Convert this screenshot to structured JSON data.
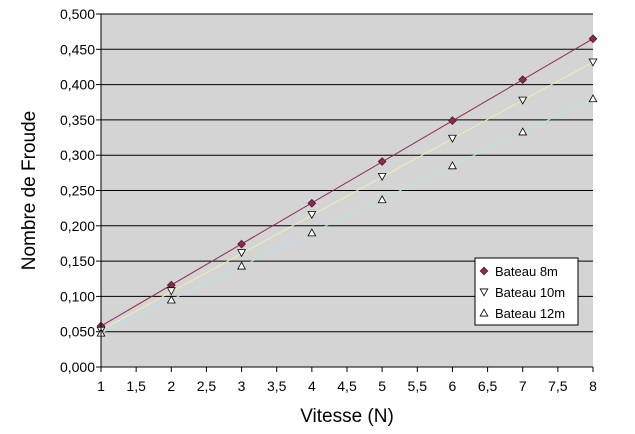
{
  "chart_data": {
    "type": "scatter",
    "title": "",
    "xlabel": "Vitesse (N)",
    "ylabel": "Nombre de Froude",
    "xlim": [
      1,
      8
    ],
    "ylim": [
      0,
      0.5
    ],
    "x_ticks": [
      1,
      1.5,
      2,
      2.5,
      3,
      3.5,
      4,
      4.5,
      5,
      5.5,
      6,
      6.5,
      7,
      7.5,
      8
    ],
    "x_tick_labels": [
      "1",
      "1,5",
      "2",
      "2,5",
      "3",
      "3,5",
      "4",
      "4,5",
      "5",
      "5,5",
      "6",
      "6,5",
      "7",
      "7,5",
      "8"
    ],
    "y_ticks": [
      0,
      0.05,
      0.1,
      0.15,
      0.2,
      0.25,
      0.3,
      0.35,
      0.4,
      0.45,
      0.5
    ],
    "y_tick_labels": [
      "0,000",
      "0,050",
      "0,100",
      "0,150",
      "0,200",
      "0,250",
      "0,300",
      "0,350",
      "0,400",
      "0,450",
      "0,500"
    ],
    "legend_position": "bottom-right",
    "plot_background": "#d4d4d4",
    "series": [
      {
        "name": "Bateau  8m",
        "marker": "diamond",
        "marker_color": "#8c2a52",
        "trend_color": "#8c2a52",
        "x": [
          1,
          2,
          3,
          4,
          5,
          6,
          7,
          8
        ],
        "y": [
          0.058,
          0.116,
          0.174,
          0.232,
          0.291,
          0.349,
          0.407,
          0.465
        ],
        "trend": [
          0.058,
          0.465
        ]
      },
      {
        "name": "Bateau 10m",
        "marker": "triangle-down",
        "marker_color": "#ffffff",
        "trend_color": "#f2ecb0",
        "x": [
          1,
          2,
          3,
          4,
          5,
          6,
          7,
          8
        ],
        "y": [
          0.052,
          0.108,
          0.162,
          0.216,
          0.27,
          0.324,
          0.378,
          0.432
        ],
        "trend": [
          0.052,
          0.432
        ]
      },
      {
        "name": "Bateau 12m",
        "marker": "triangle-up",
        "marker_color": "#ffffff",
        "trend_color": "#b8e4ee",
        "x": [
          1,
          2,
          3,
          4,
          5,
          6,
          7,
          8
        ],
        "y": [
          0.048,
          0.095,
          0.143,
          0.19,
          0.237,
          0.285,
          0.333,
          0.38
        ],
        "trend": [
          0.048,
          0.38
        ]
      }
    ]
  }
}
